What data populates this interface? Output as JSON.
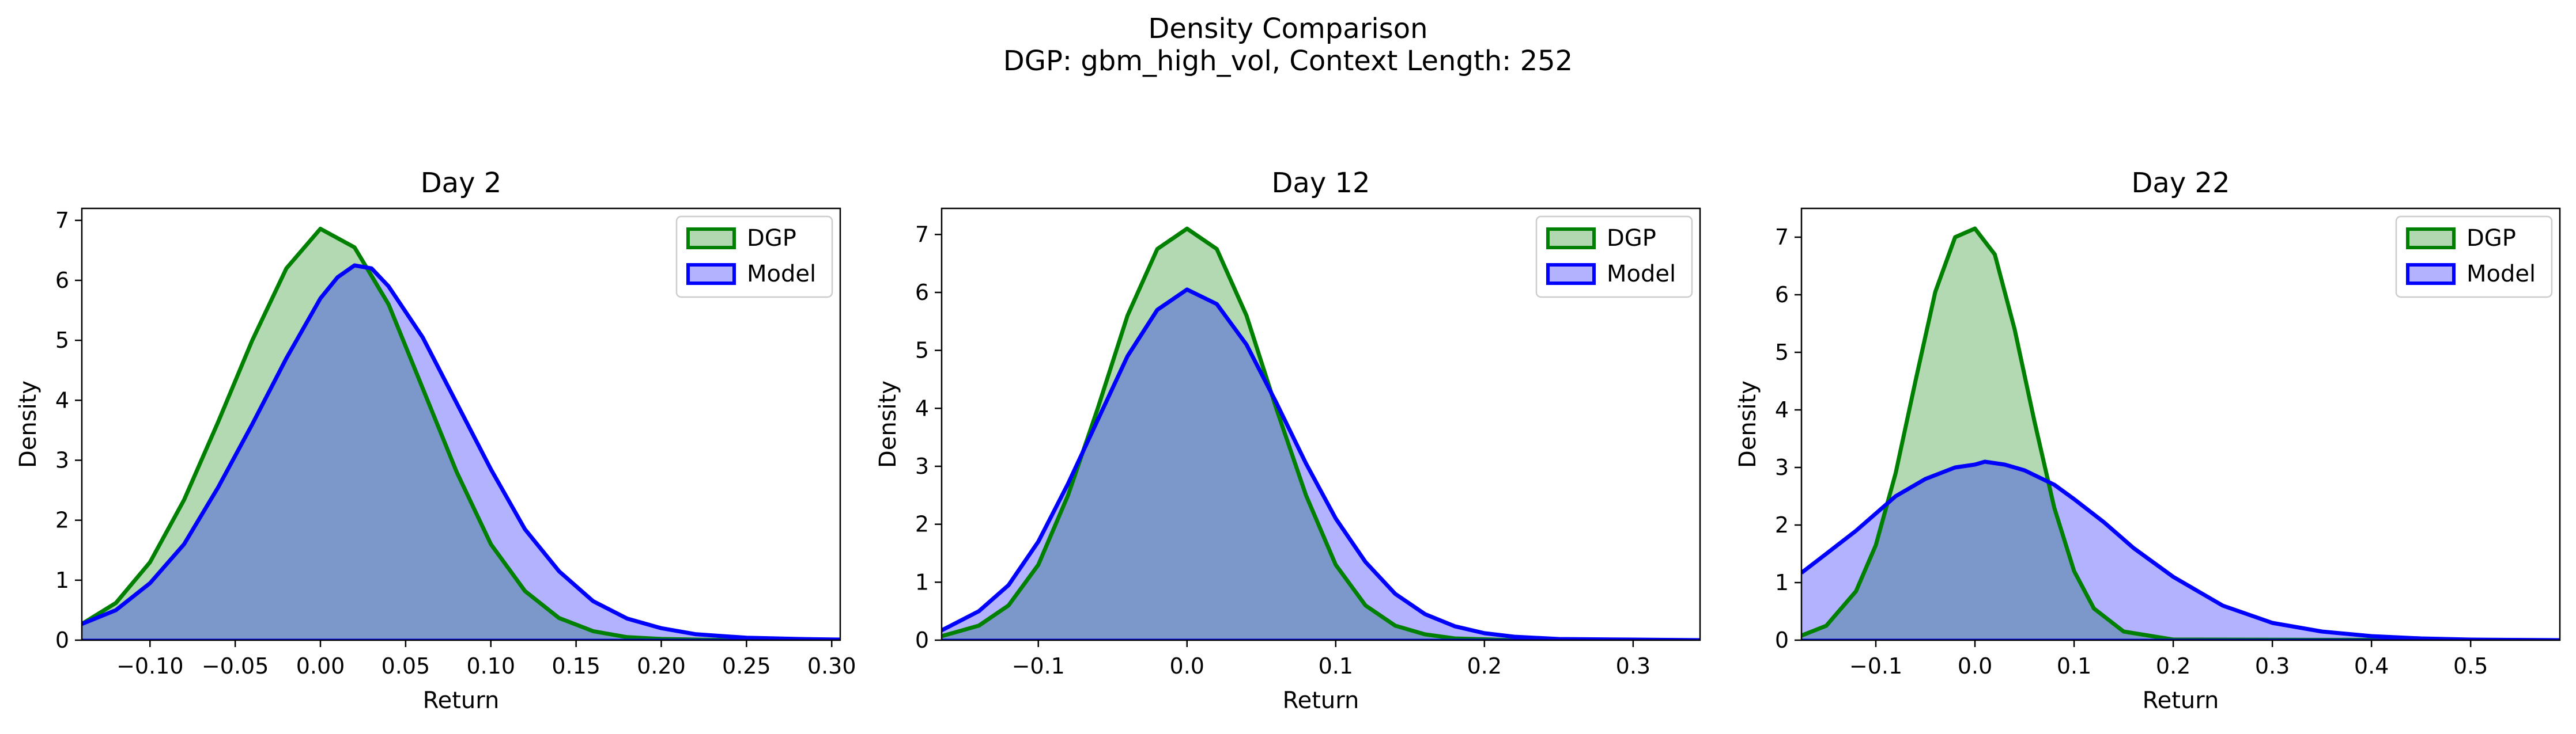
{
  "figure": {
    "title_line1": "Density Comparison",
    "title_line2": "DGP: gbm_high_vol, Context Length: 252"
  },
  "legend": {
    "labels": [
      "DGP",
      "Model"
    ],
    "colors": {
      "dgp_fill": "#b2d8b2",
      "dgp_line": "#008000",
      "model_fill": "#b2b2ff",
      "model_line": "#0000ff",
      "overlap_fill": "#7f99c8",
      "overlap_line": "#005050"
    }
  },
  "chart_data": [
    {
      "type": "area",
      "title": "Day 2",
      "xlabel": "Return",
      "ylabel": "Density",
      "xlim": [
        -0.14,
        0.305
      ],
      "ylim": [
        0,
        7.2
      ],
      "xticks": [
        -0.1,
        -0.05,
        0.0,
        0.05,
        0.1,
        0.15,
        0.2,
        0.25,
        0.3
      ],
      "xtick_labels": [
        "−0.10",
        "−0.05",
        "0.00",
        "0.05",
        "0.10",
        "0.15",
        "0.20",
        "0.25",
        "0.30"
      ],
      "yticks": [
        0,
        1,
        2,
        3,
        4,
        5,
        6,
        7
      ],
      "ytick_labels": [
        "0",
        "1",
        "2",
        "3",
        "4",
        "5",
        "6",
        "7"
      ],
      "legend_position": "top-right",
      "series": [
        {
          "name": "DGP",
          "x": [
            -0.14,
            -0.12,
            -0.1,
            -0.08,
            -0.06,
            -0.04,
            -0.02,
            0.0,
            0.02,
            0.04,
            0.06,
            0.08,
            0.1,
            0.12,
            0.14,
            0.16,
            0.18,
            0.2,
            0.22,
            0.25,
            0.305
          ],
          "y": [
            0.27,
            0.62,
            1.3,
            2.34,
            3.64,
            5.0,
            6.2,
            6.86,
            6.55,
            5.6,
            4.2,
            2.8,
            1.6,
            0.82,
            0.37,
            0.15,
            0.05,
            0.02,
            0.01,
            0.0,
            0.0
          ]
        },
        {
          "name": "Model",
          "x": [
            -0.14,
            -0.12,
            -0.1,
            -0.08,
            -0.06,
            -0.04,
            -0.02,
            0.0,
            0.01,
            0.02,
            0.03,
            0.04,
            0.06,
            0.08,
            0.1,
            0.12,
            0.14,
            0.16,
            0.18,
            0.2,
            0.22,
            0.25,
            0.28,
            0.305
          ],
          "y": [
            0.27,
            0.5,
            0.95,
            1.6,
            2.55,
            3.6,
            4.7,
            5.7,
            6.05,
            6.25,
            6.2,
            5.9,
            5.05,
            3.95,
            2.85,
            1.85,
            1.15,
            0.65,
            0.36,
            0.2,
            0.1,
            0.04,
            0.02,
            0.01
          ]
        }
      ]
    },
    {
      "type": "area",
      "title": "Day 12",
      "xlabel": "Return",
      "ylabel": "Density",
      "xlim": [
        -0.165,
        0.345
      ],
      "ylim": [
        0,
        7.45
      ],
      "xticks": [
        -0.1,
        0.0,
        0.1,
        0.2,
        0.3
      ],
      "xtick_labels": [
        "−0.1",
        "0.0",
        "0.1",
        "0.2",
        "0.3"
      ],
      "yticks": [
        0,
        1,
        2,
        3,
        4,
        5,
        6,
        7
      ],
      "ytick_labels": [
        "0",
        "1",
        "2",
        "3",
        "4",
        "5",
        "6",
        "7"
      ],
      "legend_position": "top-right",
      "series": [
        {
          "name": "DGP",
          "x": [
            -0.165,
            -0.14,
            -0.12,
            -0.1,
            -0.08,
            -0.06,
            -0.04,
            -0.02,
            0.0,
            0.02,
            0.04,
            0.06,
            0.08,
            0.1,
            0.12,
            0.14,
            0.16,
            0.18,
            0.22,
            0.345
          ],
          "y": [
            0.07,
            0.25,
            0.6,
            1.3,
            2.5,
            4.0,
            5.6,
            6.75,
            7.1,
            6.75,
            5.6,
            4.0,
            2.5,
            1.3,
            0.6,
            0.25,
            0.1,
            0.03,
            0.0,
            0.0
          ]
        },
        {
          "name": "Model",
          "x": [
            -0.165,
            -0.14,
            -0.12,
            -0.1,
            -0.08,
            -0.06,
            -0.04,
            -0.02,
            0.0,
            0.02,
            0.04,
            0.06,
            0.08,
            0.1,
            0.12,
            0.14,
            0.16,
            0.18,
            0.2,
            0.22,
            0.25,
            0.3,
            0.345
          ],
          "y": [
            0.17,
            0.5,
            0.95,
            1.7,
            2.7,
            3.8,
            4.9,
            5.7,
            6.05,
            5.8,
            5.1,
            4.1,
            3.05,
            2.1,
            1.35,
            0.8,
            0.45,
            0.24,
            0.12,
            0.06,
            0.02,
            0.01,
            0.0
          ]
        }
      ]
    },
    {
      "type": "area",
      "title": "Day 22",
      "xlabel": "Return",
      "ylabel": "Density",
      "xlim": [
        -0.175,
        0.59
      ],
      "ylim": [
        0,
        7.5
      ],
      "xticks": [
        -0.1,
        0.0,
        0.1,
        0.2,
        0.3,
        0.4,
        0.5
      ],
      "xtick_labels": [
        "−0.1",
        "0.0",
        "0.1",
        "0.2",
        "0.3",
        "0.4",
        "0.5"
      ],
      "yticks": [
        0,
        1,
        2,
        3,
        4,
        5,
        6,
        7
      ],
      "ytick_labels": [
        "0",
        "1",
        "2",
        "3",
        "4",
        "5",
        "6",
        "7"
      ],
      "legend_position": "top-right",
      "series": [
        {
          "name": "DGP",
          "x": [
            -0.175,
            -0.15,
            -0.12,
            -0.1,
            -0.08,
            -0.06,
            -0.04,
            -0.02,
            0.0,
            0.02,
            0.04,
            0.06,
            0.08,
            0.1,
            0.12,
            0.15,
            0.2,
            0.59
          ],
          "y": [
            0.08,
            0.25,
            0.85,
            1.65,
            2.9,
            4.5,
            6.05,
            7.0,
            7.15,
            6.7,
            5.4,
            3.8,
            2.3,
            1.2,
            0.55,
            0.15,
            0.01,
            0.0
          ]
        },
        {
          "name": "Model",
          "x": [
            -0.175,
            -0.15,
            -0.12,
            -0.1,
            -0.08,
            -0.05,
            -0.02,
            0.0,
            0.01,
            0.03,
            0.05,
            0.08,
            0.1,
            0.13,
            0.16,
            0.2,
            0.25,
            0.3,
            0.35,
            0.4,
            0.45,
            0.5,
            0.59
          ],
          "y": [
            1.17,
            1.5,
            1.9,
            2.2,
            2.5,
            2.8,
            3.0,
            3.05,
            3.1,
            3.05,
            2.95,
            2.7,
            2.45,
            2.05,
            1.6,
            1.1,
            0.6,
            0.3,
            0.15,
            0.07,
            0.03,
            0.01,
            0.0
          ]
        }
      ]
    }
  ]
}
